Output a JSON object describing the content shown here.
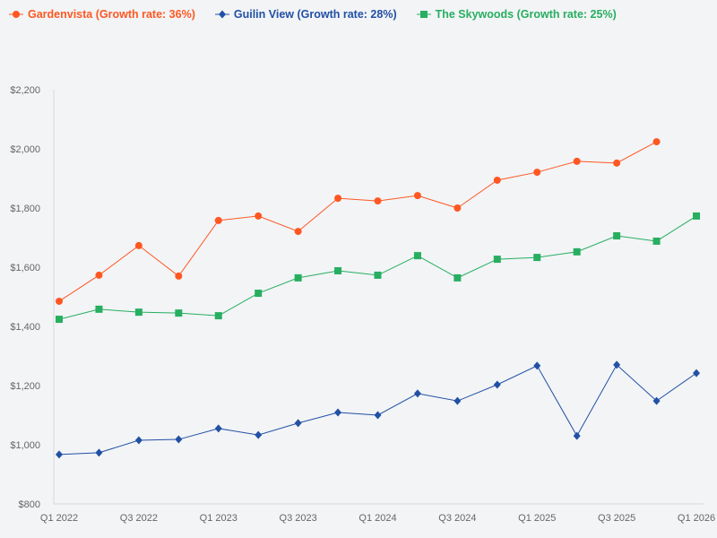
{
  "chart_data": {
    "type": "line",
    "title": "",
    "xlabel": "",
    "ylabel": "",
    "x": [
      "Q1 2022",
      "Q2 2022",
      "Q3 2022",
      "Q4 2022",
      "Q1 2023",
      "Q2 2023",
      "Q3 2023",
      "Q4 2023",
      "Q1 2024",
      "Q2 2024",
      "Q3 2024",
      "Q4 2024",
      "Q1 2025",
      "Q2 2025",
      "Q3 2025",
      "Q4 2025",
      "Q1 2026"
    ],
    "x_tick_labels": [
      "Q1 2022",
      "Q3 2022",
      "Q1 2023",
      "Q3 2023",
      "Q1 2024",
      "Q3 2024",
      "Q1 2025",
      "Q3 2025",
      "Q1 2026"
    ],
    "ylim": [
      800,
      2200
    ],
    "y_ticks": [
      800,
      1000,
      1200,
      1400,
      1600,
      1800,
      2000,
      2200
    ],
    "y_tick_labels": [
      "$800",
      "$1,000",
      "$1,200",
      "$1,400",
      "$1,600",
      "$1,800",
      "$2,000",
      "$2,200"
    ],
    "grid": false,
    "legend_position": "top-left",
    "series": [
      {
        "name": "Gardenvista (Growth rate: 36%)",
        "color": "#ff5722",
        "marker": "circle",
        "values": [
          1485,
          1573,
          1673,
          1570,
          1758,
          1773,
          1721,
          1833,
          1824,
          1842,
          1800,
          1894,
          1921,
          1958,
          1952,
          2024,
          null
        ]
      },
      {
        "name": "Guilin View (Growth rate: 28%)",
        "color": "#2150a4",
        "marker": "diamond",
        "values": [
          967,
          973,
          1015,
          1018,
          1055,
          1033,
          1073,
          1109,
          1100,
          1173,
          1148,
          1203,
          1267,
          1030,
          1270,
          1148,
          1242
        ]
      },
      {
        "name": "The Skywoods (Growth rate: 25%)",
        "color": "#27ae60",
        "marker": "square",
        "values": [
          1424,
          1458,
          1448,
          1445,
          1436,
          1512,
          1564,
          1588,
          1573,
          1639,
          1564,
          1627,
          1633,
          1652,
          1706,
          1688,
          1773
        ]
      }
    ]
  }
}
